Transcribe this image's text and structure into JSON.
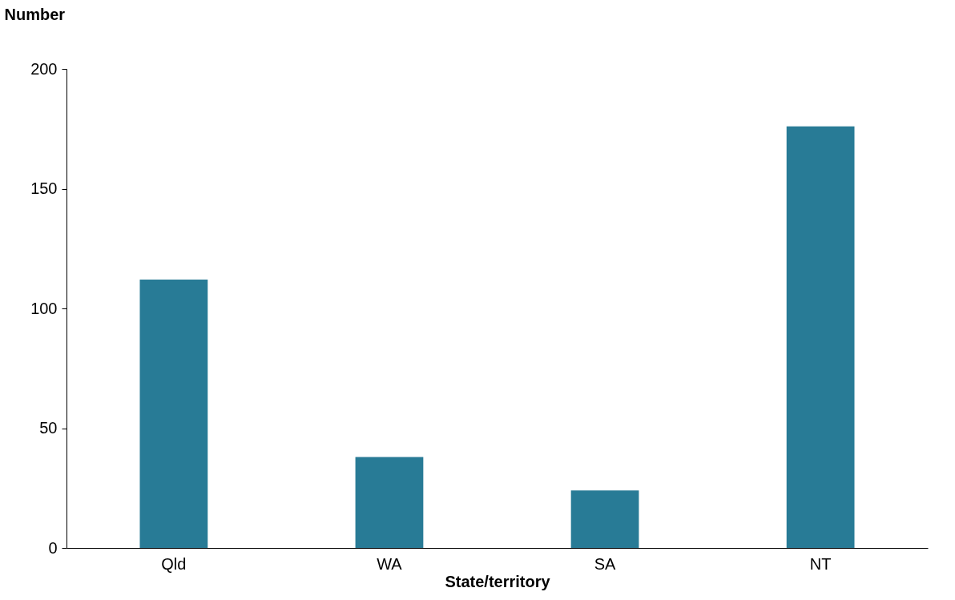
{
  "chart_data": {
    "type": "bar",
    "xlabel": "State/territory",
    "ylabel": "Number",
    "categories": [
      "Qld",
      "WA",
      "SA",
      "NT"
    ],
    "values": [
      112,
      38,
      24,
      176
    ],
    "color": "#287b96",
    "ylim": [
      0,
      200
    ],
    "yticks": [
      0,
      50,
      100,
      150,
      200
    ],
    "grid": false
  }
}
